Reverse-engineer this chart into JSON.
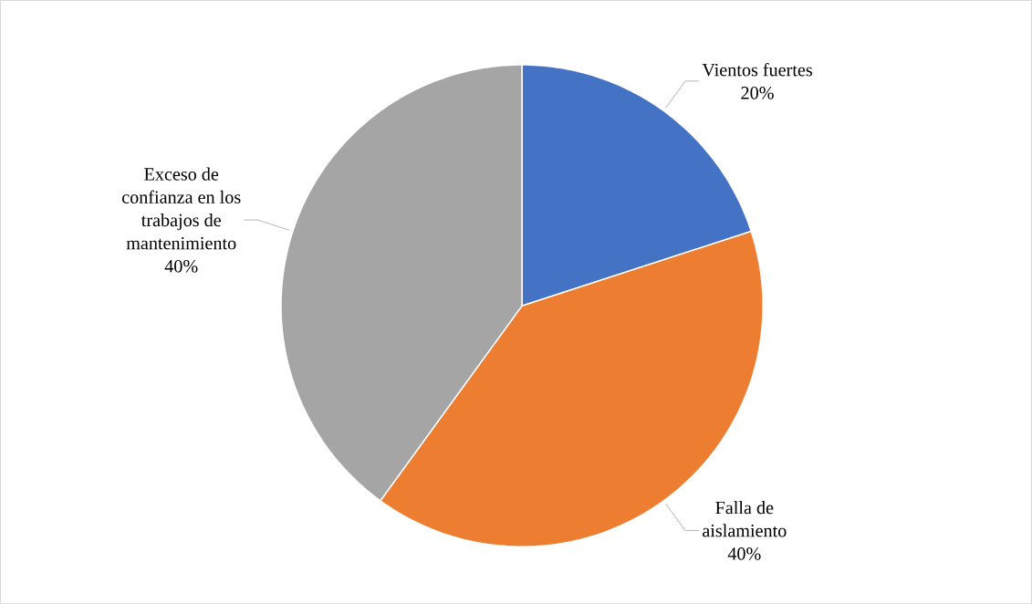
{
  "chart_data": {
    "type": "pie",
    "categories": [
      "Vientos fuertes",
      "Falla de aislamiento",
      "Exceso de confianza en los trabajos de mantenimiento"
    ],
    "values": [
      20,
      40,
      40
    ],
    "value_labels": [
      "20%",
      "40%",
      "40%"
    ],
    "colors": [
      "#4472c4",
      "#ed7d31",
      "#a5a5a5"
    ]
  }
}
